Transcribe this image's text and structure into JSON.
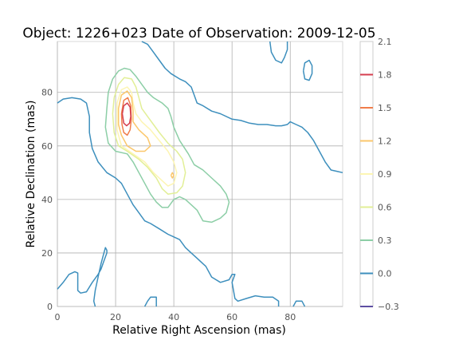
{
  "chart_data": {
    "type": "contour",
    "title": "Object: 1226+023   Date of Observation: 2009-12-05",
    "xlabel": "Relative Right Ascension (mas)",
    "ylabel": "Relative Declination (mas)",
    "xlim": [
      0,
      98
    ],
    "ylim": [
      0,
      99
    ],
    "xticks": [
      0,
      20,
      40,
      60,
      80
    ],
    "yticks": [
      0,
      20,
      40,
      60,
      80
    ],
    "grid": true,
    "colorbar": {
      "ticks": [
        "2.1",
        "1.8",
        "1.5",
        "1.2",
        "0.9",
        "0.6",
        "0.3",
        "0.0",
        "−0.3"
      ],
      "values": [
        2.1,
        1.8,
        1.5,
        1.2,
        0.9,
        0.6,
        0.3,
        0.0,
        -0.3
      ],
      "colors": {
        "1.8": "#d53e4f",
        "1.5": "#f07c4a",
        "1.2": "#fbc76b",
        "0.9": "#fdf5b3",
        "0.6": "#e2ef97",
        "0.3": "#8ccea6",
        "0.0": "#3d8fbd",
        "-0.3": "#5e4fa2"
      }
    },
    "levels": [
      {
        "level": 0.0,
        "color": "#3d8fbd",
        "paths": [
          [
            [
              0,
              76
            ],
            [
              2,
              77.5
            ],
            [
              5,
              78
            ],
            [
              8,
              77.5
            ],
            [
              10,
              76
            ],
            [
              11,
              71
            ],
            [
              11,
              65
            ],
            [
              12,
              59
            ],
            [
              14,
              54
            ],
            [
              17,
              50
            ],
            [
              20,
              48
            ],
            [
              22,
              46
            ],
            [
              24,
              42
            ],
            [
              26,
              38
            ],
            [
              28,
              35
            ],
            [
              30,
              32
            ],
            [
              32,
              31
            ],
            [
              35,
              29
            ],
            [
              38,
              27
            ],
            [
              40,
              26
            ],
            [
              42,
              25
            ],
            [
              44,
              22
            ],
            [
              46,
              20
            ],
            [
              48,
              18
            ],
            [
              51,
              15
            ],
            [
              53,
              11
            ],
            [
              56,
              9
            ],
            [
              59,
              10
            ],
            [
              60,
              12
            ],
            [
              61,
              12
            ],
            [
              60,
              9
            ],
            [
              61,
              3
            ],
            [
              62,
              2
            ],
            [
              65,
              3
            ],
            [
              68,
              4
            ],
            [
              71,
              3.5
            ],
            [
              74,
              3.5
            ],
            [
              76,
              2
            ],
            [
              76,
              0
            ]
          ],
          [
            [
              0,
              6.5
            ],
            [
              2,
              9
            ],
            [
              4,
              12
            ],
            [
              6,
              13
            ],
            [
              7,
              12.5
            ],
            [
              7,
              9
            ],
            [
              7,
              6
            ],
            [
              8,
              5
            ],
            [
              10,
              5.5
            ],
            [
              12,
              9
            ],
            [
              14,
              12
            ],
            [
              15,
              14
            ],
            [
              16,
              17
            ],
            [
              17,
              20
            ],
            [
              17,
              21
            ],
            [
              16.5,
              22
            ],
            [
              16,
              20
            ],
            [
              15,
              16
            ],
            [
              14,
              11
            ],
            [
              13,
              6
            ],
            [
              12.5,
              2
            ],
            [
              13,
              0
            ]
          ],
          [
            [
              30,
              0
            ],
            [
              31,
              2
            ],
            [
              32,
              3.5
            ],
            [
              34,
              3.5
            ],
            [
              34,
              0
            ]
          ],
          [
            [
              29,
              99
            ],
            [
              31,
              98
            ],
            [
              33,
              95
            ],
            [
              35,
              92
            ],
            [
              37,
              89
            ],
            [
              39,
              87
            ],
            [
              42,
              85
            ],
            [
              44,
              84
            ],
            [
              46,
              82
            ],
            [
              47,
              79
            ],
            [
              48,
              76
            ],
            [
              50,
              75
            ],
            [
              53,
              73
            ],
            [
              56,
              72
            ],
            [
              60,
              70
            ],
            [
              63,
              69.5
            ],
            [
              66,
              68.5
            ],
            [
              69,
              68
            ],
            [
              72,
              68
            ],
            [
              75,
              67.5
            ],
            [
              77,
              67.5
            ],
            [
              79,
              68
            ],
            [
              80,
              69
            ],
            [
              82,
              68
            ],
            [
              84,
              67
            ],
            [
              86,
              65
            ],
            [
              88,
              62
            ],
            [
              90,
              58
            ],
            [
              92,
              54
            ],
            [
              94,
              51
            ],
            [
              96,
              50.5
            ],
            [
              98,
              50
            ]
          ],
          [
            [
              73,
              99
            ],
            [
              73.5,
              95
            ],
            [
              75,
              92
            ],
            [
              77,
              91
            ],
            [
              78,
              93
            ],
            [
              79,
              96
            ],
            [
              79,
              99
            ]
          ],
          [
            [
              84.5,
              88
            ],
            [
              85,
              91
            ],
            [
              86.5,
              92
            ],
            [
              87.5,
              90
            ],
            [
              87.5,
              87
            ],
            [
              86.5,
              84.5
            ],
            [
              85,
              85
            ],
            [
              84.5,
              88
            ]
          ],
          [
            [
              81,
              0
            ],
            [
              82,
              2
            ],
            [
              84,
              2
            ],
            [
              85,
              0
            ]
          ]
        ]
      },
      {
        "level": 0.3,
        "color": "#8ccea6",
        "paths": [
          [
            [
              17.5,
              80
            ],
            [
              19,
              85
            ],
            [
              21,
              88
            ],
            [
              23,
              89
            ],
            [
              25,
              88.5
            ],
            [
              27,
              86
            ],
            [
              29,
              83
            ],
            [
              31,
              80
            ],
            [
              33,
              78
            ],
            [
              36,
              76
            ],
            [
              38,
              74
            ],
            [
              39,
              71
            ],
            [
              40,
              67
            ],
            [
              42,
              62
            ],
            [
              45,
              57
            ],
            [
              47,
              53
            ],
            [
              50,
              51
            ],
            [
              53,
              48
            ],
            [
              56,
              45
            ],
            [
              58,
              42
            ],
            [
              59,
              39
            ],
            [
              58,
              35
            ],
            [
              56,
              33
            ],
            [
              53,
              31.5
            ],
            [
              50,
              32
            ],
            [
              48,
              36
            ],
            [
              46,
              38
            ],
            [
              44,
              40
            ],
            [
              42,
              41
            ],
            [
              40,
              40
            ],
            [
              38,
              37
            ],
            [
              36,
              37
            ],
            [
              34,
              39
            ],
            [
              32,
              42
            ],
            [
              30,
              46
            ],
            [
              28,
              50
            ],
            [
              26,
              54
            ],
            [
              24,
              57
            ],
            [
              20,
              58
            ],
            [
              17.5,
              61
            ],
            [
              16.5,
              67
            ],
            [
              17,
              74
            ],
            [
              17.5,
              80
            ]
          ]
        ]
      },
      {
        "level": 0.6,
        "color": "#e2ef97",
        "paths": [
          [
            [
              19.5,
              78
            ],
            [
              21,
              83
            ],
            [
              23,
              85.5
            ],
            [
              25.5,
              85
            ],
            [
              27,
              82
            ],
            [
              28,
              78
            ],
            [
              29,
              74
            ],
            [
              31,
              71
            ],
            [
              33,
              68
            ],
            [
              35,
              65
            ],
            [
              38,
              61
            ],
            [
              41,
              58
            ],
            [
              43,
              55
            ],
            [
              44,
              50
            ],
            [
              43,
              45
            ],
            [
              41,
              42.5
            ],
            [
              38,
              42
            ],
            [
              36,
              44
            ],
            [
              34,
              48
            ],
            [
              31,
              52
            ],
            [
              28,
              55
            ],
            [
              24,
              58
            ],
            [
              21,
              60
            ],
            [
              19.5,
              65
            ],
            [
              19,
              72
            ],
            [
              19.5,
              78
            ]
          ]
        ]
      },
      {
        "level": 0.9,
        "color": "#fdf5b3",
        "paths": [
          [
            [
              20.5,
              76
            ],
            [
              22,
              81
            ],
            [
              24,
              82
            ],
            [
              25.5,
              80
            ],
            [
              26,
              76
            ],
            [
              27,
              72
            ],
            [
              29,
              69
            ],
            [
              32,
              66
            ],
            [
              35,
              62
            ],
            [
              38,
              58
            ],
            [
              40,
              54
            ],
            [
              41,
              50
            ],
            [
              40,
              46
            ],
            [
              38,
              45
            ],
            [
              36,
              47
            ],
            [
              33,
              50
            ],
            [
              30,
              54
            ],
            [
              26,
              57
            ],
            [
              22,
              60
            ],
            [
              20.5,
              66
            ],
            [
              20.5,
              76
            ]
          ]
        ]
      },
      {
        "level": 1.2,
        "color": "#fbc76b",
        "paths": [
          [
            [
              21,
              74
            ],
            [
              22,
              79
            ],
            [
              24,
              80.5
            ],
            [
              25.5,
              78
            ],
            [
              26,
              73
            ],
            [
              26,
              69
            ],
            [
              28,
              66
            ],
            [
              31,
              63
            ],
            [
              32,
              60
            ],
            [
              30,
              58
            ],
            [
              27,
              58
            ],
            [
              24,
              60
            ],
            [
              22,
              64
            ],
            [
              21,
              68
            ],
            [
              21,
              74
            ]
          ],
          [
            [
              39,
              49
            ],
            [
              39.5,
              50
            ],
            [
              40,
              49
            ],
            [
              39.5,
              48
            ],
            [
              39,
              49
            ]
          ]
        ]
      },
      {
        "level": 1.5,
        "color": "#f07c4a",
        "paths": [
          [
            [
              22,
              72
            ],
            [
              22.8,
              77
            ],
            [
              24.2,
              78
            ],
            [
              25.2,
              75
            ],
            [
              25.4,
              70
            ],
            [
              25,
              66
            ],
            [
              24,
              64
            ],
            [
              22.8,
              65
            ],
            [
              22.2,
              68
            ],
            [
              22,
              72
            ]
          ]
        ]
      },
      {
        "level": 1.8,
        "color": "#d53e4f",
        "paths": [
          [
            [
              22.3,
              72
            ],
            [
              22.8,
              75
            ],
            [
              24,
              76
            ],
            [
              25,
              74.5
            ],
            [
              25.2,
              71
            ],
            [
              24.8,
              68.5
            ],
            [
              23.8,
              67.5
            ],
            [
              22.8,
              68.5
            ],
            [
              22.3,
              72
            ]
          ]
        ]
      }
    ]
  }
}
